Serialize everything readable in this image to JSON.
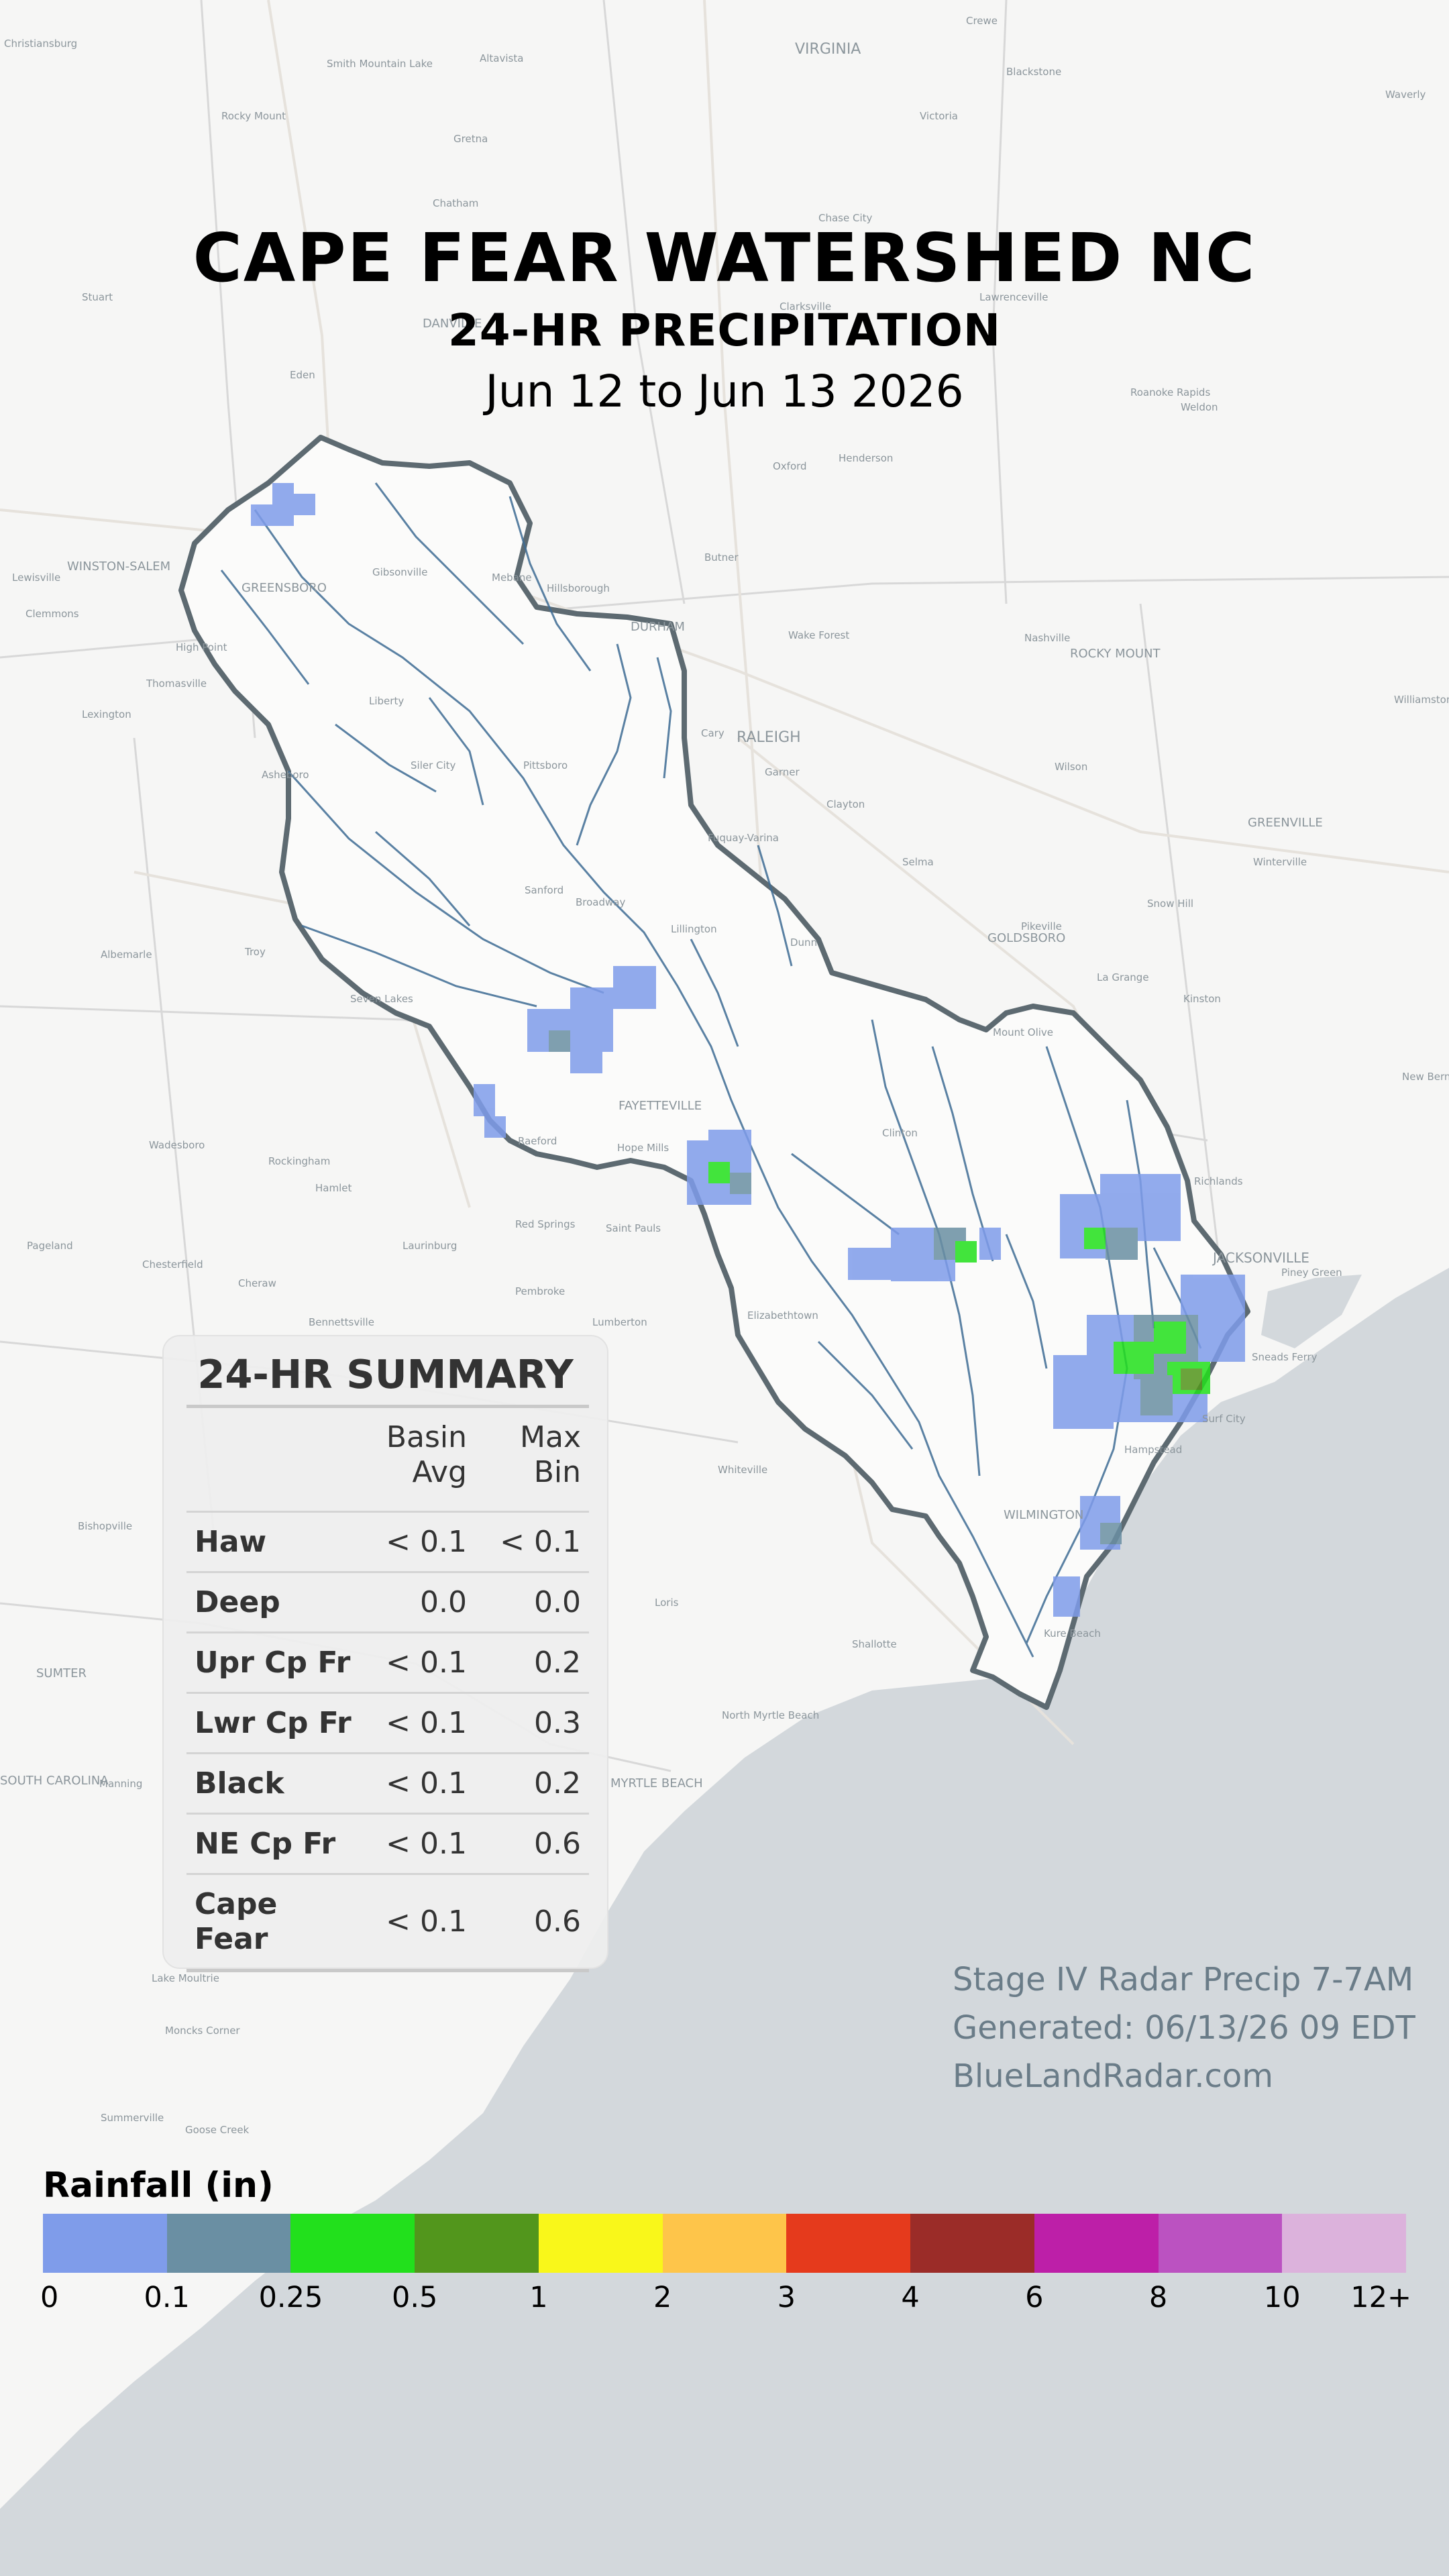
{
  "header": {
    "title": "CAPE FEAR WATERSHED NC",
    "subtitle": "24-HR PRECIPITATION",
    "date_range": "Jun 12 to Jun 13 2026"
  },
  "summary": {
    "title": "24-HR SUMMARY",
    "col_avg_line1": "Basin",
    "col_avg_line2": "Avg",
    "col_max_line1": "Max",
    "col_max_line2": "Bin",
    "rows": [
      {
        "name": "Haw",
        "avg": "< 0.1",
        "max": "< 0.1"
      },
      {
        "name": "Deep",
        "avg": "0.0",
        "max": "0.0"
      },
      {
        "name": "Upr Cp Fr",
        "avg": "< 0.1",
        "max": "0.2"
      },
      {
        "name": "Lwr Cp Fr",
        "avg": "< 0.1",
        "max": "0.3"
      },
      {
        "name": "Black",
        "avg": "< 0.1",
        "max": "0.2"
      },
      {
        "name": "NE Cp Fr",
        "avg": "< 0.1",
        "max": "0.6"
      },
      {
        "name": "Cape Fear",
        "avg": "< 0.1",
        "max": "0.6"
      }
    ]
  },
  "notes": {
    "source": "Stage IV Radar Precip 7-7AM",
    "generated": "Generated: 06/13/26 09 EDT",
    "site": "BlueLandRadar.com"
  },
  "legend": {
    "title": "Rainfall (in)",
    "ticks": [
      "0",
      "0.1",
      "0.25",
      "0.5",
      "1",
      "2",
      "3",
      "4",
      "6",
      "8",
      "10",
      "12+"
    ],
    "colors": [
      "#7f9cea",
      "#6a8fa3",
      "#22e01c",
      "#52961c",
      "#f9f71a",
      "#fec54a",
      "#e53a1c",
      "#9b2c28",
      "#bd1fa8",
      "#bb52c1",
      "#dcb2dc"
    ]
  },
  "map": {
    "ocean_color": "#d3d8dc",
    "land_color": "#f6f6f5",
    "basin_outline_color": "#5d6a71",
    "river_color": "#3e6c94",
    "labels": [
      "Christiansburg",
      "Crewe",
      "VIRGINIA",
      "Smith Mountain Lake",
      "Altavista",
      "Waverly",
      "Blackstone",
      "Rocky Mount",
      "Gretna",
      "Victoria",
      "Chatham",
      "Chase City",
      "Stuart",
      "DANVILLE",
      "Clarksville",
      "Lawrenceville",
      "Eden",
      "Roanoke Rapids",
      "Weldon",
      "Henderson",
      "Oxford",
      "WINSTON-SALEM",
      "Lewisville",
      "GREENSBORO",
      "Gibsonville",
      "Mebane",
      "Hillsborough",
      "Butner",
      "Clemmons",
      "DURHAM",
      "Wake Forest",
      "Nashville",
      "High Point",
      "Thomasville",
      "Lexington",
      "Liberty",
      "ROCKY MOUNT",
      "Asheboro",
      "Siler City",
      "Pittsboro",
      "Cary",
      "RALEIGH",
      "Garner",
      "Wilson",
      "Williamston",
      "Clayton",
      "Fuquay-Varina",
      "GREENVILLE",
      "Winterville",
      "Sanford",
      "Broadway",
      "Selma",
      "Troy",
      "Albemarle",
      "Lillington",
      "Pikeville",
      "Snow Hill",
      "Dunn",
      "GOLDSBORO",
      "La Grange",
      "Seven Lakes",
      "Kinston",
      "Mount Olive",
      "FAYETTEVILLE",
      "New Bern",
      "Wadesboro",
      "Rockingham",
      "Hope Mills",
      "Clinton",
      "Hamlet",
      "Richlands",
      "Raeford",
      "Red Springs",
      "Saint Pauls",
      "JACKSONVILLE",
      "Pageland",
      "Laurinburg",
      "Chesterfield",
      "Cheraw",
      "Pembroke",
      "Lumberton",
      "Piney Green",
      "Sneads Ferry",
      "Bennettsville",
      "Elizabethtown",
      "Whiteville",
      "Hampstead",
      "Surf City",
      "Bishopville",
      "WILMINGTON",
      "Loris",
      "SUMTER",
      "Shallotte",
      "Kure Beach",
      "North Myrtle Beach",
      "MYRTLE BEACH",
      "Manning",
      "Lake Moultrie",
      "Moncks Corner",
      "Summerville",
      "Goose Creek",
      "SOUTH CAROLINA"
    ]
  }
}
